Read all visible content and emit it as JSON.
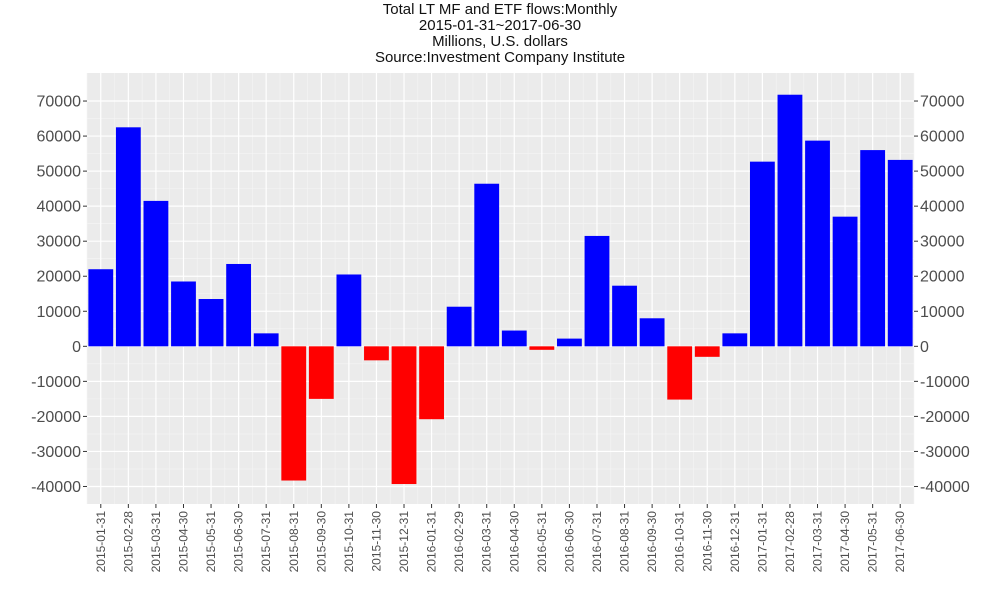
{
  "chart_data": {
    "type": "bar",
    "title": "Total LT MF and ETF flows:Monthly",
    "subtitle_lines": [
      "2015-01-31~2017-06-30",
      "Millions, U.S. dollars",
      "Source:Investment Company Institute"
    ],
    "xlabel": "",
    "ylabel": "",
    "ylim": [
      -45000,
      78000
    ],
    "yticks": [
      -40000,
      -30000,
      -20000,
      -10000,
      0,
      10000,
      20000,
      30000,
      40000,
      50000,
      60000,
      70000
    ],
    "ytick_labels": [
      "-40000",
      "-30000",
      "-20000",
      "-10000",
      "0",
      "10000",
      "20000",
      "30000",
      "40000",
      "50000",
      "60000",
      "70000"
    ],
    "grid": true,
    "secondary_y_axis": true,
    "positive_color": "#0000ff",
    "negative_color": "#ff0000",
    "panel_color": "#ebebeb",
    "categories": [
      "2015-01-31",
      "2015-02-28",
      "2015-03-31",
      "2015-04-30",
      "2015-05-31",
      "2015-06-30",
      "2015-07-31",
      "2015-08-31",
      "2015-09-30",
      "2015-10-31",
      "2015-11-30",
      "2015-12-31",
      "2016-01-31",
      "2016-02-29",
      "2016-03-31",
      "2016-04-30",
      "2016-05-31",
      "2016-06-30",
      "2016-07-31",
      "2016-08-31",
      "2016-09-30",
      "2016-10-31",
      "2016-11-30",
      "2016-12-31",
      "2017-01-31",
      "2017-02-28",
      "2017-03-31",
      "2017-04-30",
      "2017-05-31",
      "2017-06-30"
    ],
    "values": [
      22000,
      62500,
      41500,
      18500,
      13500,
      23500,
      3700,
      -38300,
      -15000,
      20500,
      -4000,
      -39300,
      -20800,
      11300,
      46400,
      4500,
      -1000,
      2200,
      31500,
      17300,
      8000,
      -15200,
      -3000,
      3700,
      52700,
      71800,
      58700,
      37000,
      56000,
      53200
    ]
  }
}
